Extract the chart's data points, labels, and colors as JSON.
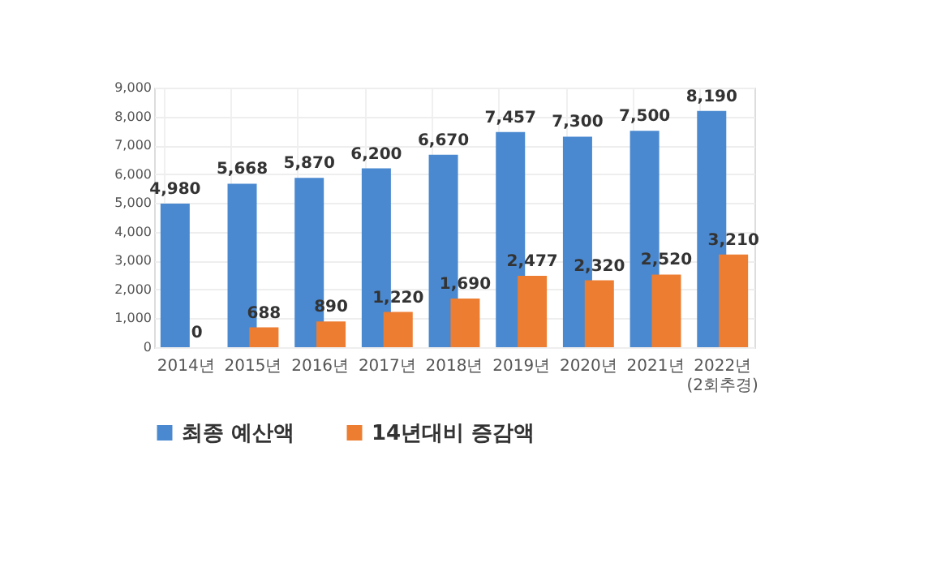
{
  "chart_data": {
    "type": "bar",
    "categories": [
      "2014년",
      "2015년",
      "2016년",
      "2017년",
      "2018년",
      "2019년",
      "2020년",
      "2021년",
      "2022년\n(2회추경)"
    ],
    "series": [
      {
        "name": "최종 예산액",
        "color": "#4a89d0",
        "values": [
          4980,
          5668,
          5870,
          6200,
          6670,
          7457,
          7300,
          7500,
          8190
        ],
        "value_labels": [
          "4,980",
          "5,668",
          "5,870",
          "6,200",
          "6,670",
          "7,457",
          "7,300",
          "7,500",
          "8,190"
        ]
      },
      {
        "name": "14년대비 증감액",
        "color": "#ed7d31",
        "values": [
          0,
          688,
          890,
          1220,
          1690,
          2477,
          2320,
          2520,
          3210
        ],
        "value_labels": [
          "0",
          "688",
          "890",
          "1,220",
          "1,690",
          "2,477",
          "2,320",
          "2,520",
          "3,210"
        ]
      }
    ],
    "ylim": [
      0,
      9000
    ],
    "yticks": [
      {
        "value": 0,
        "label": "0"
      },
      {
        "value": 1000,
        "label": "1,000"
      },
      {
        "value": 2000,
        "label": "2,000"
      },
      {
        "value": 3000,
        "label": "3,000"
      },
      {
        "value": 4000,
        "label": "4,000"
      },
      {
        "value": 5000,
        "label": "5,000"
      },
      {
        "value": 6000,
        "label": "6,000"
      },
      {
        "value": 7000,
        "label": "7,000"
      },
      {
        "value": 8000,
        "label": "8,000"
      },
      {
        "value": 9000,
        "label": "9,000"
      }
    ],
    "grid": true,
    "legend": "bottom"
  }
}
